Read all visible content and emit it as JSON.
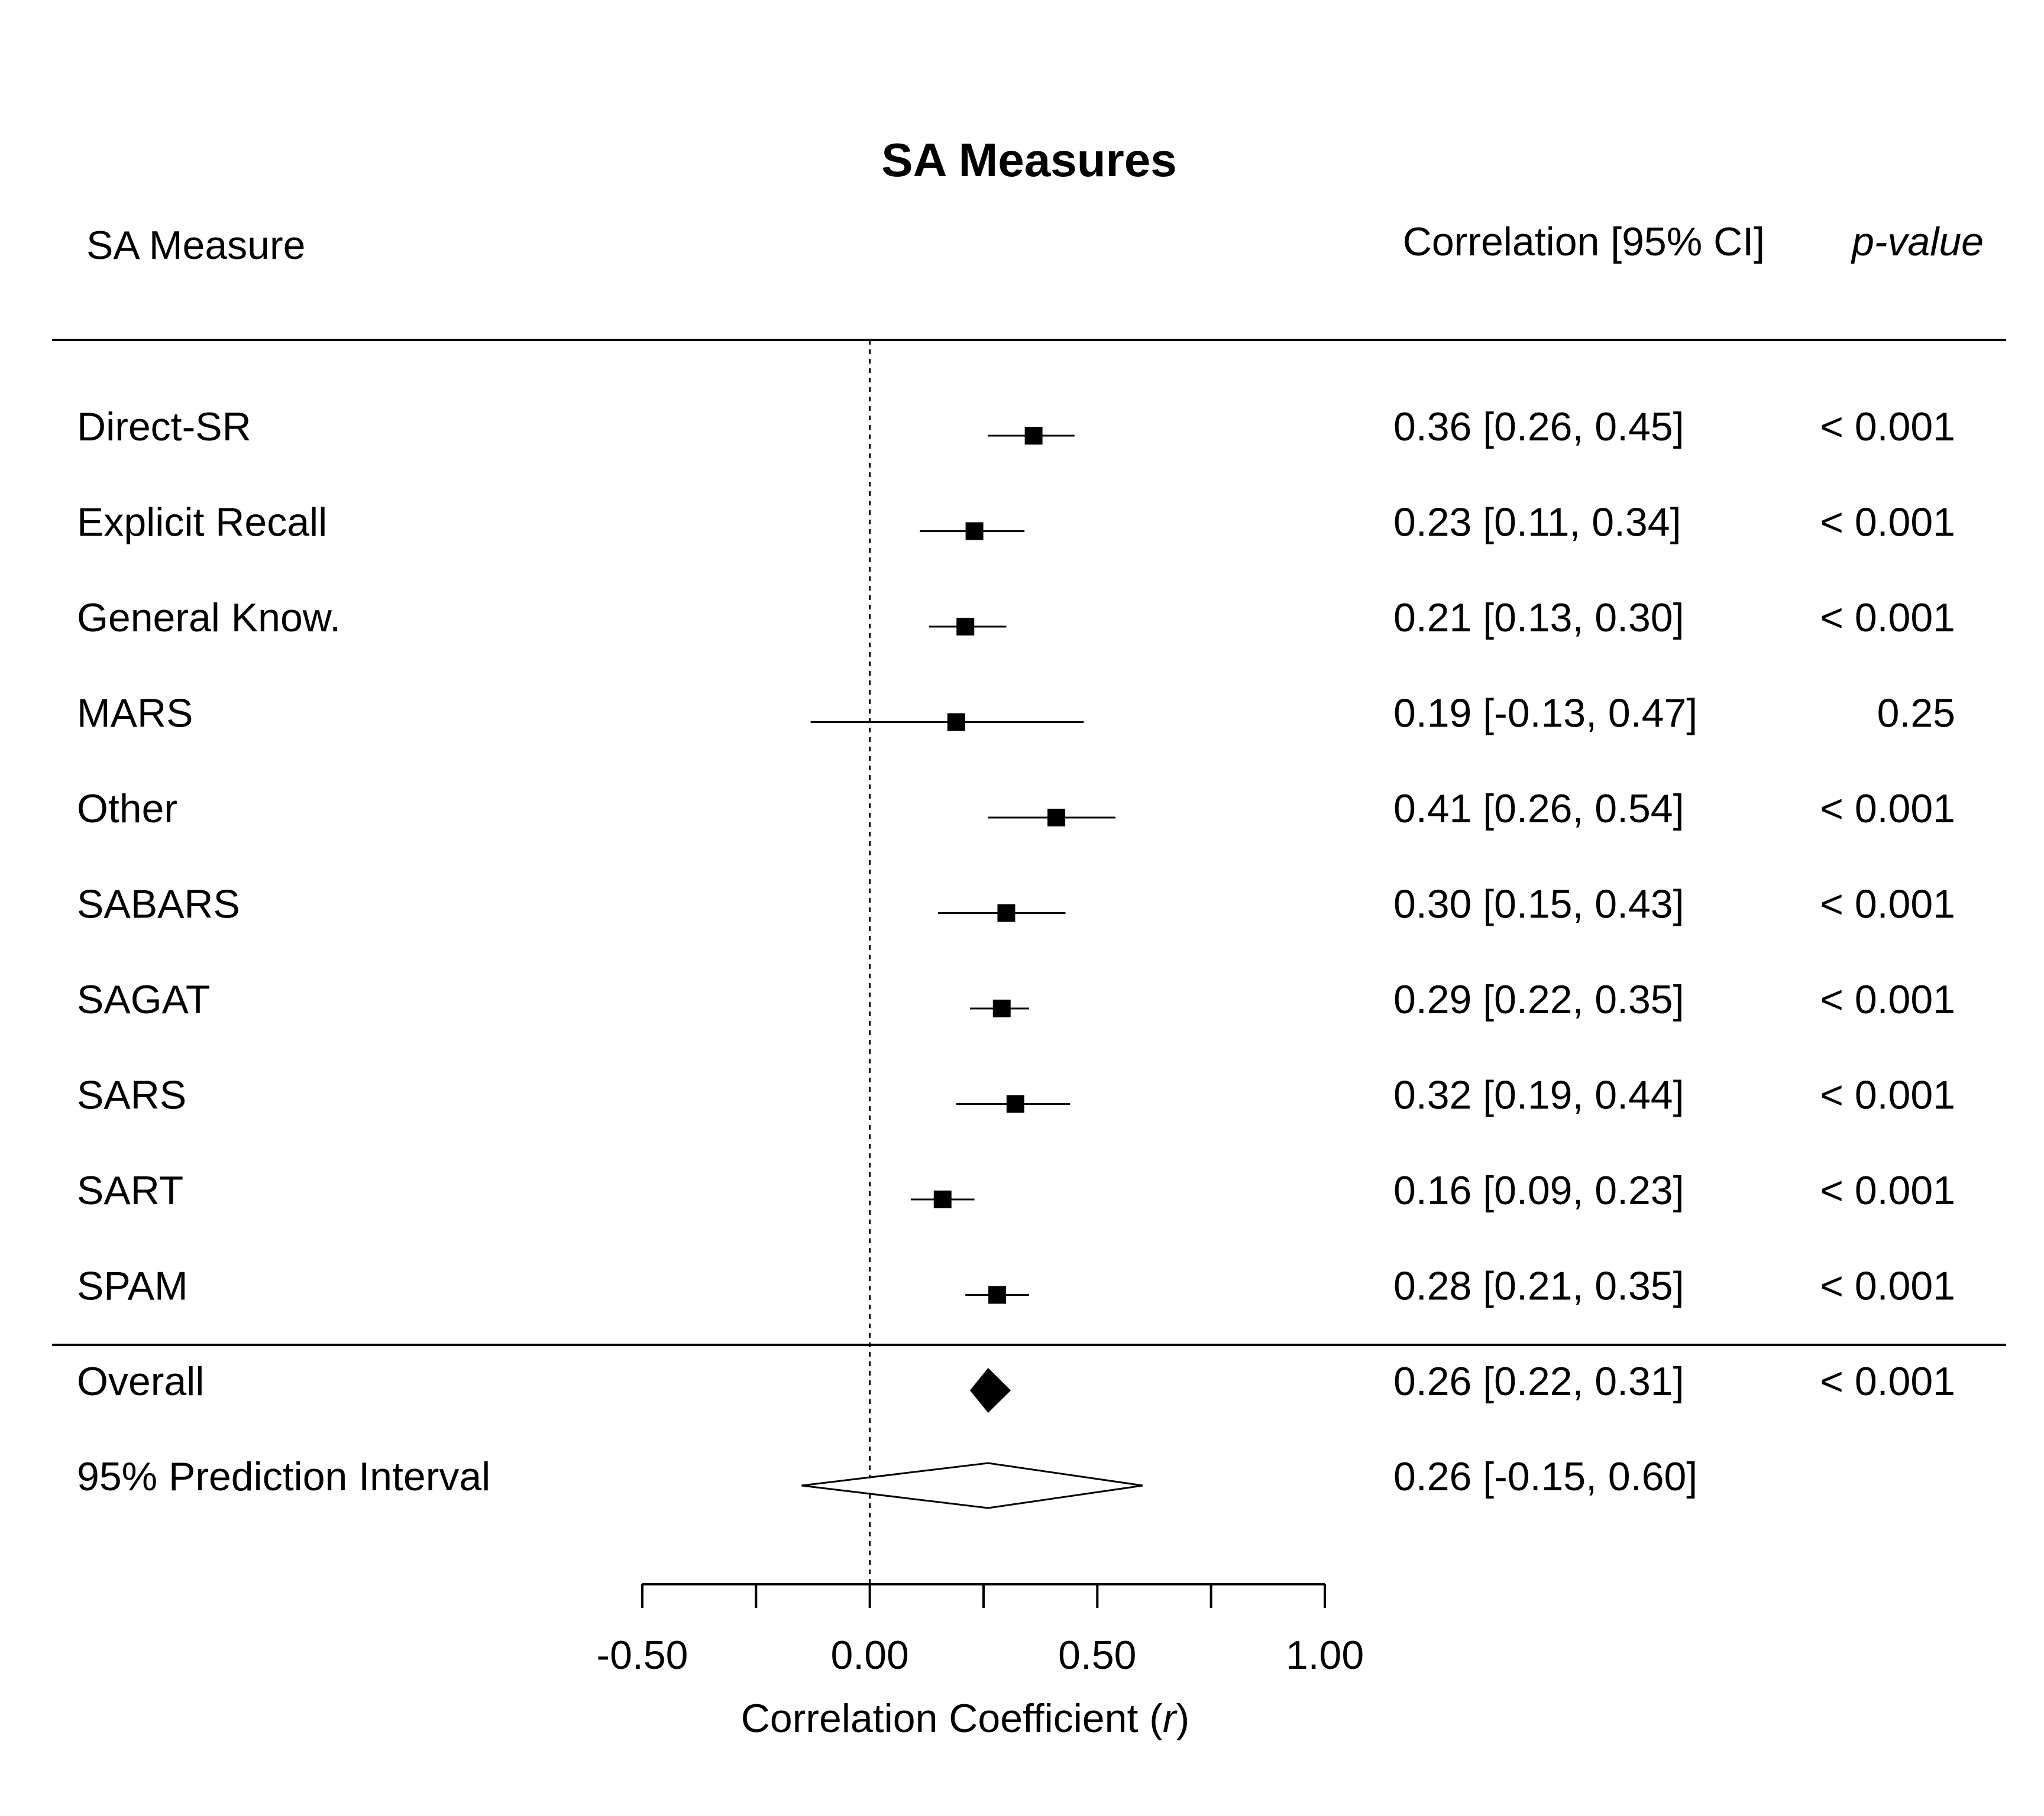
{
  "chart_data": {
    "type": "forest",
    "title": "SA Measures",
    "columns": {
      "label_header": "SA Measure",
      "estimate_header": "Correlation [95% CI]",
      "pvalue_header": "p-value"
    },
    "studies": [
      {
        "label": "Direct-SR",
        "r": 0.36,
        "lower": 0.26,
        "upper": 0.45,
        "ci_text": "0.36 [0.26, 0.45]",
        "p_text": "< 0.001"
      },
      {
        "label": "Explicit Recall",
        "r": 0.23,
        "lower": 0.11,
        "upper": 0.34,
        "ci_text": "0.23 [0.11, 0.34]",
        "p_text": "< 0.001"
      },
      {
        "label": "General Know.",
        "r": 0.21,
        "lower": 0.13,
        "upper": 0.3,
        "ci_text": "0.21 [0.13, 0.30]",
        "p_text": "< 0.001"
      },
      {
        "label": "MARS",
        "r": 0.19,
        "lower": -0.13,
        "upper": 0.47,
        "ci_text": "0.19 [-0.13, 0.47]",
        "p_text": "0.25"
      },
      {
        "label": "Other",
        "r": 0.41,
        "lower": 0.26,
        "upper": 0.54,
        "ci_text": "0.41 [0.26, 0.54]",
        "p_text": "< 0.001"
      },
      {
        "label": "SABARS",
        "r": 0.3,
        "lower": 0.15,
        "upper": 0.43,
        "ci_text": "0.30 [0.15, 0.43]",
        "p_text": "< 0.001"
      },
      {
        "label": "SAGAT",
        "r": 0.29,
        "lower": 0.22,
        "upper": 0.35,
        "ci_text": "0.29 [0.22, 0.35]",
        "p_text": "< 0.001"
      },
      {
        "label": "SARS",
        "r": 0.32,
        "lower": 0.19,
        "upper": 0.44,
        "ci_text": "0.32 [0.19, 0.44]",
        "p_text": "< 0.001"
      },
      {
        "label": "SART",
        "r": 0.16,
        "lower": 0.09,
        "upper": 0.23,
        "ci_text": "0.16 [0.09, 0.23]",
        "p_text": "< 0.001"
      },
      {
        "label": "SPAM",
        "r": 0.28,
        "lower": 0.21,
        "upper": 0.35,
        "ci_text": "0.28 [0.21, 0.35]",
        "p_text": "< 0.001"
      }
    ],
    "overall": {
      "label": "Overall",
      "r": 0.26,
      "lower": 0.22,
      "upper": 0.31,
      "ci_text": "0.26 [0.22, 0.31]",
      "p_text": "< 0.001"
    },
    "prediction_interval": {
      "label": "95% Prediction Interval",
      "r": 0.26,
      "lower": -0.15,
      "upper": 0.6,
      "ci_text": "0.26 [-0.15, 0.60]"
    },
    "x_axis": {
      "label_prefix": "Correlation Coefficient (",
      "label_symbol": "r",
      "label_suffix": ")",
      "xlim": [
        -0.5,
        1.0
      ],
      "ticks": [
        -0.5,
        -0.25,
        0.0,
        0.25,
        0.5,
        0.75,
        1.0
      ],
      "tick_labels": [
        "-0.50",
        "",
        "0.00",
        "",
        "0.50",
        "",
        "1.00"
      ],
      "reference_line": 0.0
    }
  }
}
